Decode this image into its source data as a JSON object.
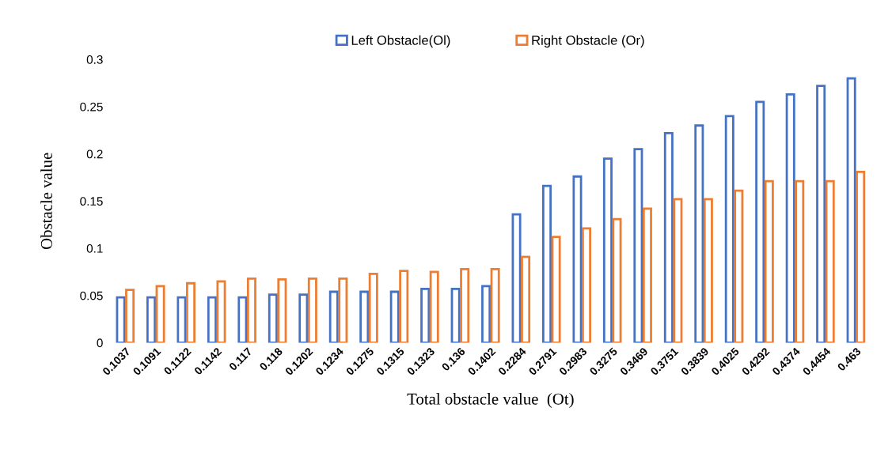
{
  "chart_data": {
    "type": "bar",
    "xlabel": "Total obstacle value  (Ot)",
    "ylabel": "Obstacle value",
    "categories": [
      "0.1037",
      "0.1091",
      "0.1122",
      "0.1142",
      "0.117",
      "0.118",
      "0.1202",
      "0.1234",
      "0.1275",
      "0.1315",
      "0.1323",
      "0.136",
      "0.1402",
      "0.2284",
      "0.2791",
      "0.2983",
      "0.3275",
      "0.3469",
      "0.3751",
      "0.3839",
      "0.4025",
      "0.4292",
      "0.4374",
      "0.4454",
      "0.463"
    ],
    "series": [
      {
        "name": "Left Obstacle(Ol)",
        "color": "#4472c4",
        "values": [
          0.048,
          0.048,
          0.048,
          0.048,
          0.048,
          0.051,
          0.051,
          0.054,
          0.054,
          0.054,
          0.057,
          0.057,
          0.06,
          0.136,
          0.166,
          0.176,
          0.195,
          0.205,
          0.222,
          0.23,
          0.24,
          0.255,
          0.263,
          0.272,
          0.28
        ]
      },
      {
        "name": "Right Obstacle (Or)",
        "color": "#ed7d31",
        "values": [
          0.056,
          0.06,
          0.063,
          0.065,
          0.068,
          0.067,
          0.068,
          0.068,
          0.073,
          0.076,
          0.075,
          0.078,
          0.078,
          0.091,
          0.112,
          0.121,
          0.131,
          0.142,
          0.152,
          0.152,
          0.161,
          0.171,
          0.171,
          0.171,
          0.181
        ]
      }
    ],
    "ylim": [
      0,
      0.3
    ],
    "yticks": [
      0,
      0.05,
      0.1,
      0.15,
      0.2,
      0.25,
      0.3
    ],
    "legend": "top"
  }
}
